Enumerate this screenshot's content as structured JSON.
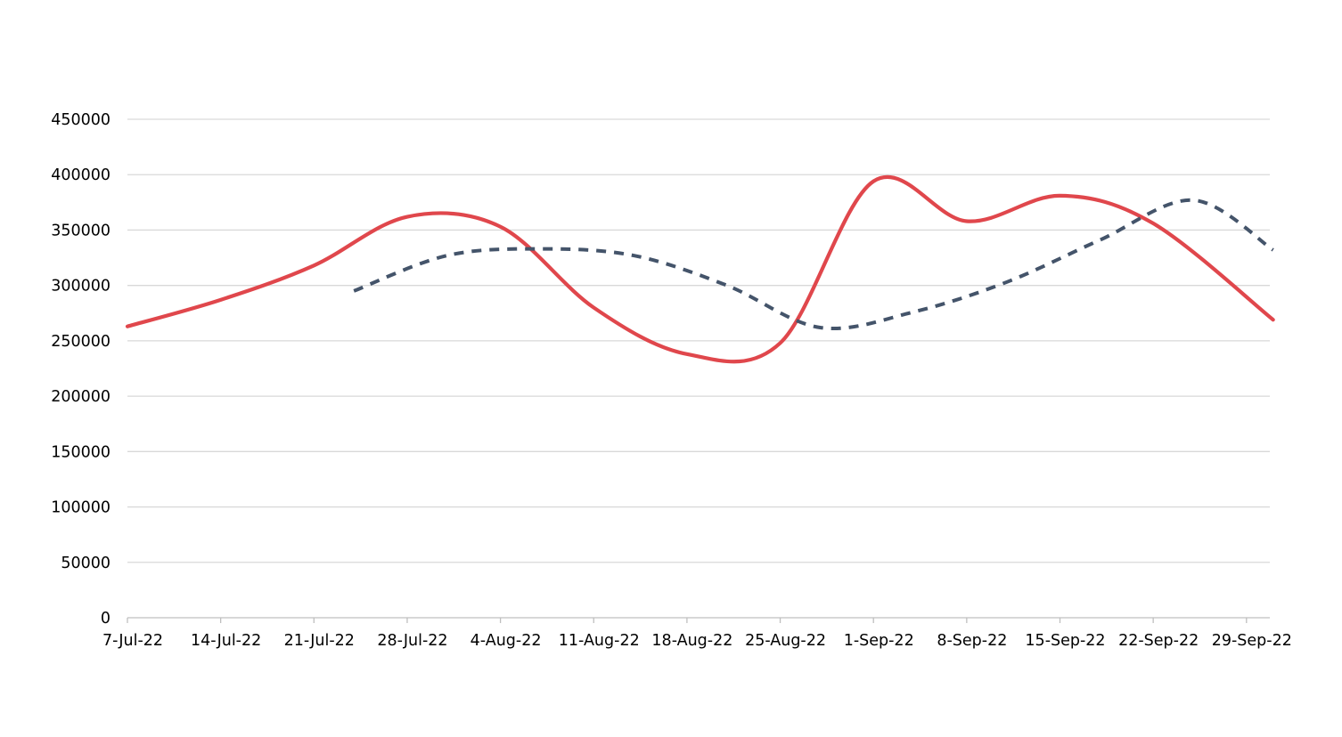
{
  "chart_data": {
    "type": "line",
    "title": "",
    "xlabel": "",
    "ylabel": "",
    "ylim": [
      0,
      450000
    ],
    "yticks": [
      0,
      50000,
      100000,
      150000,
      200000,
      250000,
      300000,
      350000,
      400000,
      450000
    ],
    "xlim": [
      "2022-07-07",
      "2022-10-01"
    ],
    "x_tick_labels": [
      "7-Jul-22",
      "14-Jul-22",
      "21-Jul-22",
      "28-Jul-22",
      "4-Aug-22",
      "11-Aug-22",
      "18-Aug-22",
      "25-Aug-22",
      "1-Sep-22",
      "8-Sep-22",
      "15-Sep-22",
      "22-Sep-22",
      "29-Sep-22"
    ],
    "x_tick_dates": [
      "2022-07-07",
      "2022-07-14",
      "2022-07-21",
      "2022-07-28",
      "2022-08-04",
      "2022-08-11",
      "2022-08-18",
      "2022-08-25",
      "2022-09-01",
      "2022-09-08",
      "2022-09-15",
      "2022-09-22",
      "2022-09-29"
    ],
    "grid": true,
    "legend": "none",
    "series": [
      {
        "color": "#e0474c",
        "style": "solid",
        "x": [
          "2022-07-07",
          "2022-07-14",
          "2022-07-21",
          "2022-07-28",
          "2022-08-04",
          "2022-08-11",
          "2022-08-18",
          "2022-08-25",
          "2022-09-01",
          "2022-09-08",
          "2022-09-15",
          "2022-09-22",
          "2022-10-01"
        ],
        "values": [
          263000,
          287000,
          318000,
          362000,
          353000,
          280000,
          238000,
          248000,
          394000,
          358000,
          381000,
          356000,
          269000
        ]
      },
      {
        "color": "#44546a",
        "style": "dashed",
        "x": [
          "2022-07-24",
          "2022-07-31",
          "2022-08-07",
          "2022-08-14",
          "2022-08-21",
          "2022-08-28",
          "2022-09-04",
          "2022-09-11",
          "2022-09-18",
          "2022-09-25",
          "2022-10-01"
        ],
        "values": [
          295000,
          327000,
          333000,
          327000,
          300000,
          262000,
          276000,
          303000,
          341000,
          377000,
          332000
        ]
      }
    ]
  }
}
